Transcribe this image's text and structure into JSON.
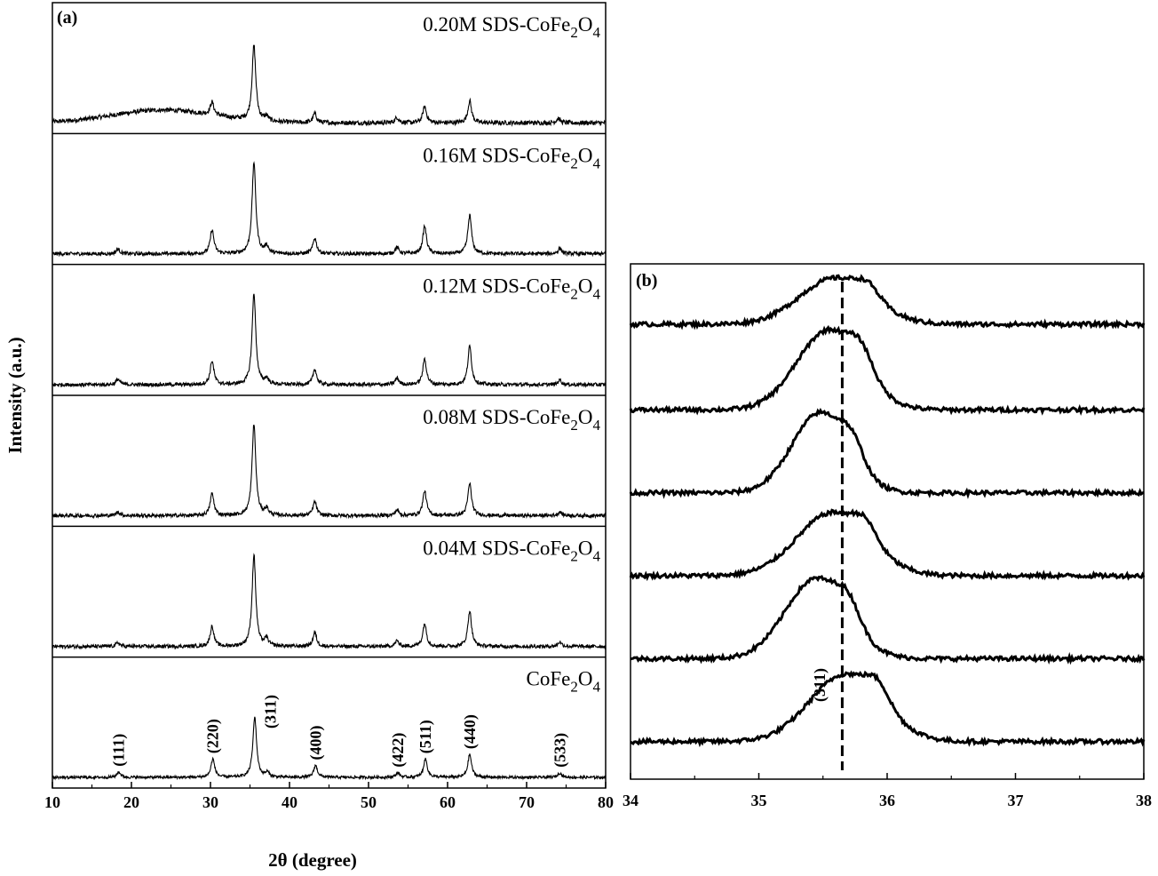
{
  "chart_data": [
    {
      "panel": "(a)",
      "type": "line",
      "xlabel": "2θ (degree)",
      "ylabel": "Intensity (a.u.)",
      "xlim": [
        10,
        80
      ],
      "x_ticks": [
        10,
        20,
        30,
        40,
        50,
        60,
        70,
        80
      ],
      "series": [
        {
          "name": "0.20M SDS-CoFe2O4",
          "label_main": "0.20M SDS-CoFe",
          "sub1": "2",
          "mid": "O",
          "sub2": "4",
          "peaks": [
            {
              "x": 30.2,
              "h": 0.14
            },
            {
              "x": 35.5,
              "h": 0.82
            },
            {
              "x": 37.1,
              "h": 0.05
            },
            {
              "x": 43.2,
              "h": 0.1
            },
            {
              "x": 53.6,
              "h": 0.06
            },
            {
              "x": 57.1,
              "h": 0.18
            },
            {
              "x": 62.8,
              "h": 0.24
            },
            {
              "x": 74.0,
              "h": 0.05
            }
          ],
          "hump": 0.14,
          "noise": 0.05
        },
        {
          "name": "0.16M SDS-CoFe2O4",
          "label_main": "0.16M SDS-CoFe",
          "sub1": "2",
          "mid": "O",
          "sub2": "4",
          "peaks": [
            {
              "x": 18.3,
              "h": 0.05
            },
            {
              "x": 30.2,
              "h": 0.26
            },
            {
              "x": 35.5,
              "h": 1.0
            },
            {
              "x": 37.1,
              "h": 0.08
            },
            {
              "x": 43.2,
              "h": 0.17
            },
            {
              "x": 53.6,
              "h": 0.07
            },
            {
              "x": 57.1,
              "h": 0.3
            },
            {
              "x": 62.8,
              "h": 0.42
            },
            {
              "x": 74.2,
              "h": 0.06
            }
          ],
          "hump": 0.0,
          "noise": 0.04
        },
        {
          "name": "0.12M SDS-CoFe2O4",
          "label_main": "0.12M SDS-CoFe",
          "sub1": "2",
          "mid": "O",
          "sub2": "4",
          "peaks": [
            {
              "x": 18.3,
              "h": 0.06
            },
            {
              "x": 30.2,
              "h": 0.26
            },
            {
              "x": 35.5,
              "h": 1.0
            },
            {
              "x": 37.1,
              "h": 0.06
            },
            {
              "x": 43.2,
              "h": 0.17
            },
            {
              "x": 53.6,
              "h": 0.07
            },
            {
              "x": 57.1,
              "h": 0.28
            },
            {
              "x": 62.8,
              "h": 0.42
            },
            {
              "x": 74.2,
              "h": 0.05
            }
          ],
          "hump": 0.0,
          "noise": 0.04
        },
        {
          "name": "0.08M SDS-CoFe2O4",
          "label_main": "0.08M SDS-CoFe",
          "sub1": "2",
          "mid": "O",
          "sub2": "4",
          "peaks": [
            {
              "x": 18.3,
              "h": 0.04
            },
            {
              "x": 30.2,
              "h": 0.24
            },
            {
              "x": 35.5,
              "h": 1.0
            },
            {
              "x": 37.1,
              "h": 0.07
            },
            {
              "x": 43.2,
              "h": 0.15
            },
            {
              "x": 53.6,
              "h": 0.06
            },
            {
              "x": 57.1,
              "h": 0.27
            },
            {
              "x": 62.8,
              "h": 0.35
            },
            {
              "x": 74.2,
              "h": 0.04
            }
          ],
          "hump": 0.0,
          "noise": 0.04
        },
        {
          "name": "0.04M SDS-CoFe2O4",
          "label_main": "0.04M SDS-CoFe",
          "sub1": "2",
          "mid": "O",
          "sub2": "4",
          "peaks": [
            {
              "x": 18.3,
              "h": 0.04
            },
            {
              "x": 30.2,
              "h": 0.22
            },
            {
              "x": 35.5,
              "h": 1.0
            },
            {
              "x": 37.1,
              "h": 0.08
            },
            {
              "x": 43.2,
              "h": 0.15
            },
            {
              "x": 53.6,
              "h": 0.06
            },
            {
              "x": 57.1,
              "h": 0.25
            },
            {
              "x": 62.8,
              "h": 0.39
            },
            {
              "x": 74.2,
              "h": 0.05
            }
          ],
          "hump": 0.0,
          "noise": 0.04
        },
        {
          "name": "CoFe2O4",
          "label_main": "CoFe",
          "sub1": "2",
          "mid": "O",
          "sub2": "4",
          "peaks": [
            {
              "x": 18.4,
              "h": 0.06
            },
            {
              "x": 30.3,
              "h": 0.2
            },
            {
              "x": 35.6,
              "h": 0.66
            },
            {
              "x": 37.2,
              "h": 0.05
            },
            {
              "x": 43.3,
              "h": 0.13
            },
            {
              "x": 53.7,
              "h": 0.05
            },
            {
              "x": 57.2,
              "h": 0.2
            },
            {
              "x": 62.8,
              "h": 0.25
            },
            {
              "x": 74.2,
              "h": 0.05
            }
          ],
          "hump": 0.0,
          "noise": 0.03
        }
      ],
      "annotations": [
        {
          "text": "(111)",
          "x": 18.4
        },
        {
          "text": "(220)",
          "x": 30.3
        },
        {
          "text": "(311)",
          "x": 37.6
        },
        {
          "text": "(400)",
          "x": 43.3
        },
        {
          "text": "(422)",
          "x": 53.7
        },
        {
          "text": "(511)",
          "x": 57.2
        },
        {
          "text": "(440)",
          "x": 62.8
        },
        {
          "text": "(533)",
          "x": 74.2
        }
      ]
    },
    {
      "panel": "(b)",
      "type": "line",
      "xlim": [
        34,
        38
      ],
      "x_ticks": [
        34,
        35,
        36,
        37,
        38
      ],
      "reference_line_x": 35.65,
      "annotation": {
        "text": "(311)",
        "x": 35.5
      },
      "series_order_note": "top to bottom",
      "series": [
        {
          "center": 35.6,
          "h": 0.55,
          "w": 0.28
        },
        {
          "center": 35.55,
          "h": 0.95,
          "w": 0.25
        },
        {
          "center": 35.48,
          "h": 0.95,
          "w": 0.22
        },
        {
          "center": 35.58,
          "h": 0.75,
          "w": 0.28
        },
        {
          "center": 35.45,
          "h": 0.95,
          "w": 0.24
        },
        {
          "center": 35.68,
          "h": 0.8,
          "w": 0.28
        }
      ]
    }
  ]
}
